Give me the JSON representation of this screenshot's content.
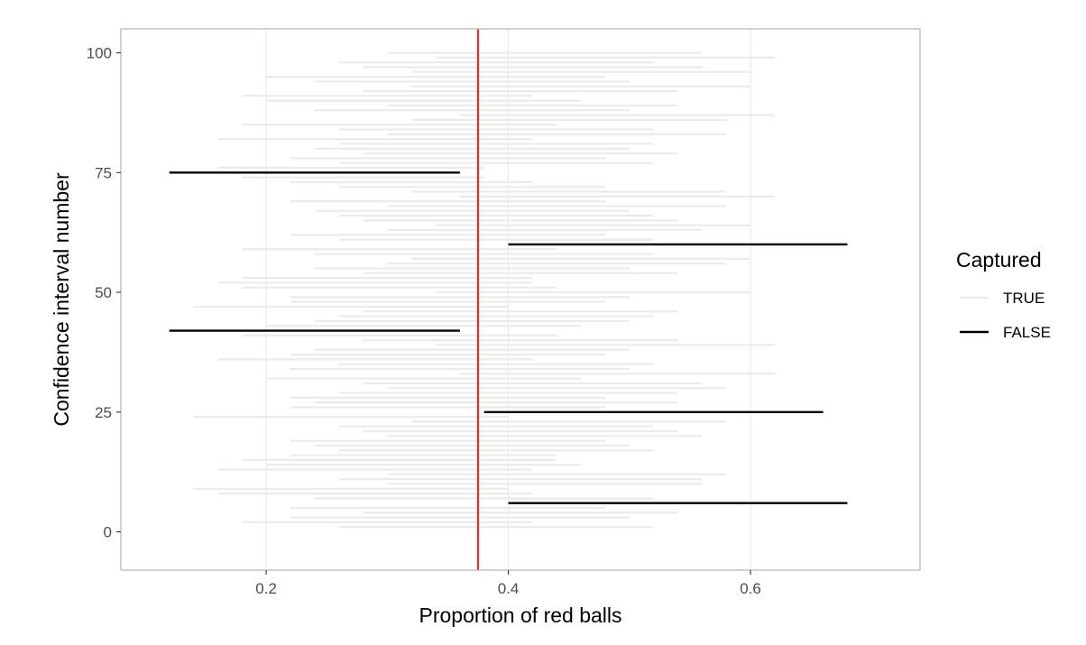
{
  "chart_data": {
    "type": "line",
    "xlabel": "Proportion of red balls",
    "ylabel": "Confidence interval number",
    "xlim": [
      0.08,
      0.74
    ],
    "ylim": [
      -8,
      105
    ],
    "xticks": [
      0.2,
      0.4,
      0.6
    ],
    "xtick_labels": [
      "0.2",
      "0.4",
      "0.6"
    ],
    "yticks": [
      0,
      25,
      50,
      75,
      100
    ],
    "ytick_labels": [
      "0",
      "25",
      "50",
      "75",
      "100"
    ],
    "grid": true,
    "legend_position": "right",
    "reference_line": {
      "x": 0.375,
      "color": "#e0321f"
    },
    "legend": {
      "title": "Captured",
      "entries": [
        {
          "label": "TRUE",
          "color": "#ebebeb"
        },
        {
          "label": "FALSE",
          "color": "#000000"
        }
      ]
    },
    "colors": {
      "captured": "#ebebeb",
      "missed": "#000000"
    },
    "intervals": [
      {
        "id": 1,
        "lower": 0.26,
        "upper": 0.52,
        "captured": true
      },
      {
        "id": 2,
        "lower": 0.18,
        "upper": 0.42,
        "captured": true
      },
      {
        "id": 3,
        "lower": 0.22,
        "upper": 0.5,
        "captured": true
      },
      {
        "id": 4,
        "lower": 0.28,
        "upper": 0.54,
        "captured": true
      },
      {
        "id": 5,
        "lower": 0.22,
        "upper": 0.48,
        "captured": true
      },
      {
        "id": 6,
        "lower": 0.4,
        "upper": 0.68,
        "captured": false
      },
      {
        "id": 7,
        "lower": 0.24,
        "upper": 0.52,
        "captured": true
      },
      {
        "id": 8,
        "lower": 0.16,
        "upper": 0.42,
        "captured": true
      },
      {
        "id": 9,
        "lower": 0.14,
        "upper": 0.4,
        "captured": true
      },
      {
        "id": 10,
        "lower": 0.3,
        "upper": 0.56,
        "captured": true
      },
      {
        "id": 11,
        "lower": 0.26,
        "upper": 0.56,
        "captured": true
      },
      {
        "id": 12,
        "lower": 0.3,
        "upper": 0.58,
        "captured": true
      },
      {
        "id": 13,
        "lower": 0.16,
        "upper": 0.42,
        "captured": true
      },
      {
        "id": 14,
        "lower": 0.2,
        "upper": 0.46,
        "captured": true
      },
      {
        "id": 15,
        "lower": 0.18,
        "upper": 0.44,
        "captured": true
      },
      {
        "id": 16,
        "lower": 0.22,
        "upper": 0.44,
        "captured": true
      },
      {
        "id": 17,
        "lower": 0.26,
        "upper": 0.52,
        "captured": true
      },
      {
        "id": 18,
        "lower": 0.24,
        "upper": 0.5,
        "captured": true
      },
      {
        "id": 19,
        "lower": 0.22,
        "upper": 0.48,
        "captured": true
      },
      {
        "id": 20,
        "lower": 0.3,
        "upper": 0.56,
        "captured": true
      },
      {
        "id": 21,
        "lower": 0.28,
        "upper": 0.54,
        "captured": true
      },
      {
        "id": 22,
        "lower": 0.26,
        "upper": 0.52,
        "captured": true
      },
      {
        "id": 23,
        "lower": 0.32,
        "upper": 0.58,
        "captured": true
      },
      {
        "id": 24,
        "lower": 0.14,
        "upper": 0.4,
        "captured": true
      },
      {
        "id": 25,
        "lower": 0.38,
        "upper": 0.66,
        "captured": false
      },
      {
        "id": 26,
        "lower": 0.22,
        "upper": 0.48,
        "captured": true
      },
      {
        "id": 27,
        "lower": 0.24,
        "upper": 0.54,
        "captured": true
      },
      {
        "id": 28,
        "lower": 0.22,
        "upper": 0.48,
        "captured": true
      },
      {
        "id": 29,
        "lower": 0.26,
        "upper": 0.54,
        "captured": true
      },
      {
        "id": 30,
        "lower": 0.3,
        "upper": 0.58,
        "captured": true
      },
      {
        "id": 31,
        "lower": 0.28,
        "upper": 0.56,
        "captured": true
      },
      {
        "id": 32,
        "lower": 0.2,
        "upper": 0.46,
        "captured": true
      },
      {
        "id": 33,
        "lower": 0.36,
        "upper": 0.62,
        "captured": true
      },
      {
        "id": 34,
        "lower": 0.22,
        "upper": 0.5,
        "captured": true
      },
      {
        "id": 35,
        "lower": 0.26,
        "upper": 0.52,
        "captured": true
      },
      {
        "id": 36,
        "lower": 0.16,
        "upper": 0.42,
        "captured": true
      },
      {
        "id": 37,
        "lower": 0.22,
        "upper": 0.48,
        "captured": true
      },
      {
        "id": 38,
        "lower": 0.24,
        "upper": 0.5,
        "captured": true
      },
      {
        "id": 39,
        "lower": 0.34,
        "upper": 0.62,
        "captured": true
      },
      {
        "id": 40,
        "lower": 0.28,
        "upper": 0.54,
        "captured": true
      },
      {
        "id": 41,
        "lower": 0.18,
        "upper": 0.44,
        "captured": true
      },
      {
        "id": 42,
        "lower": 0.12,
        "upper": 0.36,
        "captured": false
      },
      {
        "id": 43,
        "lower": 0.2,
        "upper": 0.46,
        "captured": true
      },
      {
        "id": 44,
        "lower": 0.24,
        "upper": 0.5,
        "captured": true
      },
      {
        "id": 45,
        "lower": 0.26,
        "upper": 0.52,
        "captured": true
      },
      {
        "id": 46,
        "lower": 0.28,
        "upper": 0.54,
        "captured": true
      },
      {
        "id": 47,
        "lower": 0.14,
        "upper": 0.4,
        "captured": true
      },
      {
        "id": 48,
        "lower": 0.22,
        "upper": 0.48,
        "captured": true
      },
      {
        "id": 49,
        "lower": 0.22,
        "upper": 0.5,
        "captured": true
      },
      {
        "id": 50,
        "lower": 0.34,
        "upper": 0.6,
        "captured": true
      },
      {
        "id": 51,
        "lower": 0.18,
        "upper": 0.44,
        "captured": true
      },
      {
        "id": 52,
        "lower": 0.16,
        "upper": 0.42,
        "captured": true
      },
      {
        "id": 53,
        "lower": 0.18,
        "upper": 0.42,
        "captured": true
      },
      {
        "id": 54,
        "lower": 0.28,
        "upper": 0.54,
        "captured": true
      },
      {
        "id": 55,
        "lower": 0.24,
        "upper": 0.5,
        "captured": true
      },
      {
        "id": 56,
        "lower": 0.3,
        "upper": 0.58,
        "captured": true
      },
      {
        "id": 57,
        "lower": 0.32,
        "upper": 0.6,
        "captured": true
      },
      {
        "id": 58,
        "lower": 0.24,
        "upper": 0.52,
        "captured": true
      },
      {
        "id": 59,
        "lower": 0.18,
        "upper": 0.44,
        "captured": true
      },
      {
        "id": 60,
        "lower": 0.4,
        "upper": 0.68,
        "captured": false
      },
      {
        "id": 61,
        "lower": 0.26,
        "upper": 0.52,
        "captured": true
      },
      {
        "id": 62,
        "lower": 0.22,
        "upper": 0.48,
        "captured": true
      },
      {
        "id": 63,
        "lower": 0.3,
        "upper": 0.56,
        "captured": true
      },
      {
        "id": 64,
        "lower": 0.34,
        "upper": 0.6,
        "captured": true
      },
      {
        "id": 65,
        "lower": 0.28,
        "upper": 0.54,
        "captured": true
      },
      {
        "id": 66,
        "lower": 0.26,
        "upper": 0.52,
        "captured": true
      },
      {
        "id": 67,
        "lower": 0.24,
        "upper": 0.5,
        "captured": true
      },
      {
        "id": 68,
        "lower": 0.3,
        "upper": 0.58,
        "captured": true
      },
      {
        "id": 69,
        "lower": 0.22,
        "upper": 0.48,
        "captured": true
      },
      {
        "id": 70,
        "lower": 0.36,
        "upper": 0.62,
        "captured": true
      },
      {
        "id": 71,
        "lower": 0.32,
        "upper": 0.58,
        "captured": true
      },
      {
        "id": 72,
        "lower": 0.26,
        "upper": 0.48,
        "captured": true
      },
      {
        "id": 73,
        "lower": 0.22,
        "upper": 0.42,
        "captured": true
      },
      {
        "id": 74,
        "lower": 0.18,
        "upper": 0.38,
        "captured": true
      },
      {
        "id": 75,
        "lower": 0.12,
        "upper": 0.36,
        "captured": false
      },
      {
        "id": 76,
        "lower": 0.16,
        "upper": 0.38,
        "captured": true
      },
      {
        "id": 77,
        "lower": 0.26,
        "upper": 0.52,
        "captured": true
      },
      {
        "id": 78,
        "lower": 0.22,
        "upper": 0.48,
        "captured": true
      },
      {
        "id": 79,
        "lower": 0.28,
        "upper": 0.54,
        "captured": true
      },
      {
        "id": 80,
        "lower": 0.24,
        "upper": 0.5,
        "captured": true
      },
      {
        "id": 81,
        "lower": 0.26,
        "upper": 0.52,
        "captured": true
      },
      {
        "id": 82,
        "lower": 0.16,
        "upper": 0.42,
        "captured": true
      },
      {
        "id": 83,
        "lower": 0.3,
        "upper": 0.58,
        "captured": true
      },
      {
        "id": 84,
        "lower": 0.26,
        "upper": 0.52,
        "captured": true
      },
      {
        "id": 85,
        "lower": 0.18,
        "upper": 0.44,
        "captured": true
      },
      {
        "id": 86,
        "lower": 0.32,
        "upper": 0.58,
        "captured": true
      },
      {
        "id": 87,
        "lower": 0.36,
        "upper": 0.62,
        "captured": true
      },
      {
        "id": 88,
        "lower": 0.24,
        "upper": 0.5,
        "captured": true
      },
      {
        "id": 89,
        "lower": 0.3,
        "upper": 0.54,
        "captured": true
      },
      {
        "id": 90,
        "lower": 0.2,
        "upper": 0.46,
        "captured": true
      },
      {
        "id": 91,
        "lower": 0.18,
        "upper": 0.42,
        "captured": true
      },
      {
        "id": 92,
        "lower": 0.28,
        "upper": 0.54,
        "captured": true
      },
      {
        "id": 93,
        "lower": 0.32,
        "upper": 0.6,
        "captured": true
      },
      {
        "id": 94,
        "lower": 0.24,
        "upper": 0.5,
        "captured": true
      },
      {
        "id": 95,
        "lower": 0.2,
        "upper": 0.48,
        "captured": true
      },
      {
        "id": 96,
        "lower": 0.32,
        "upper": 0.6,
        "captured": true
      },
      {
        "id": 97,
        "lower": 0.28,
        "upper": 0.56,
        "captured": true
      },
      {
        "id": 98,
        "lower": 0.26,
        "upper": 0.52,
        "captured": true
      },
      {
        "id": 99,
        "lower": 0.34,
        "upper": 0.62,
        "captured": true
      },
      {
        "id": 100,
        "lower": 0.3,
        "upper": 0.56,
        "captured": true
      }
    ]
  }
}
